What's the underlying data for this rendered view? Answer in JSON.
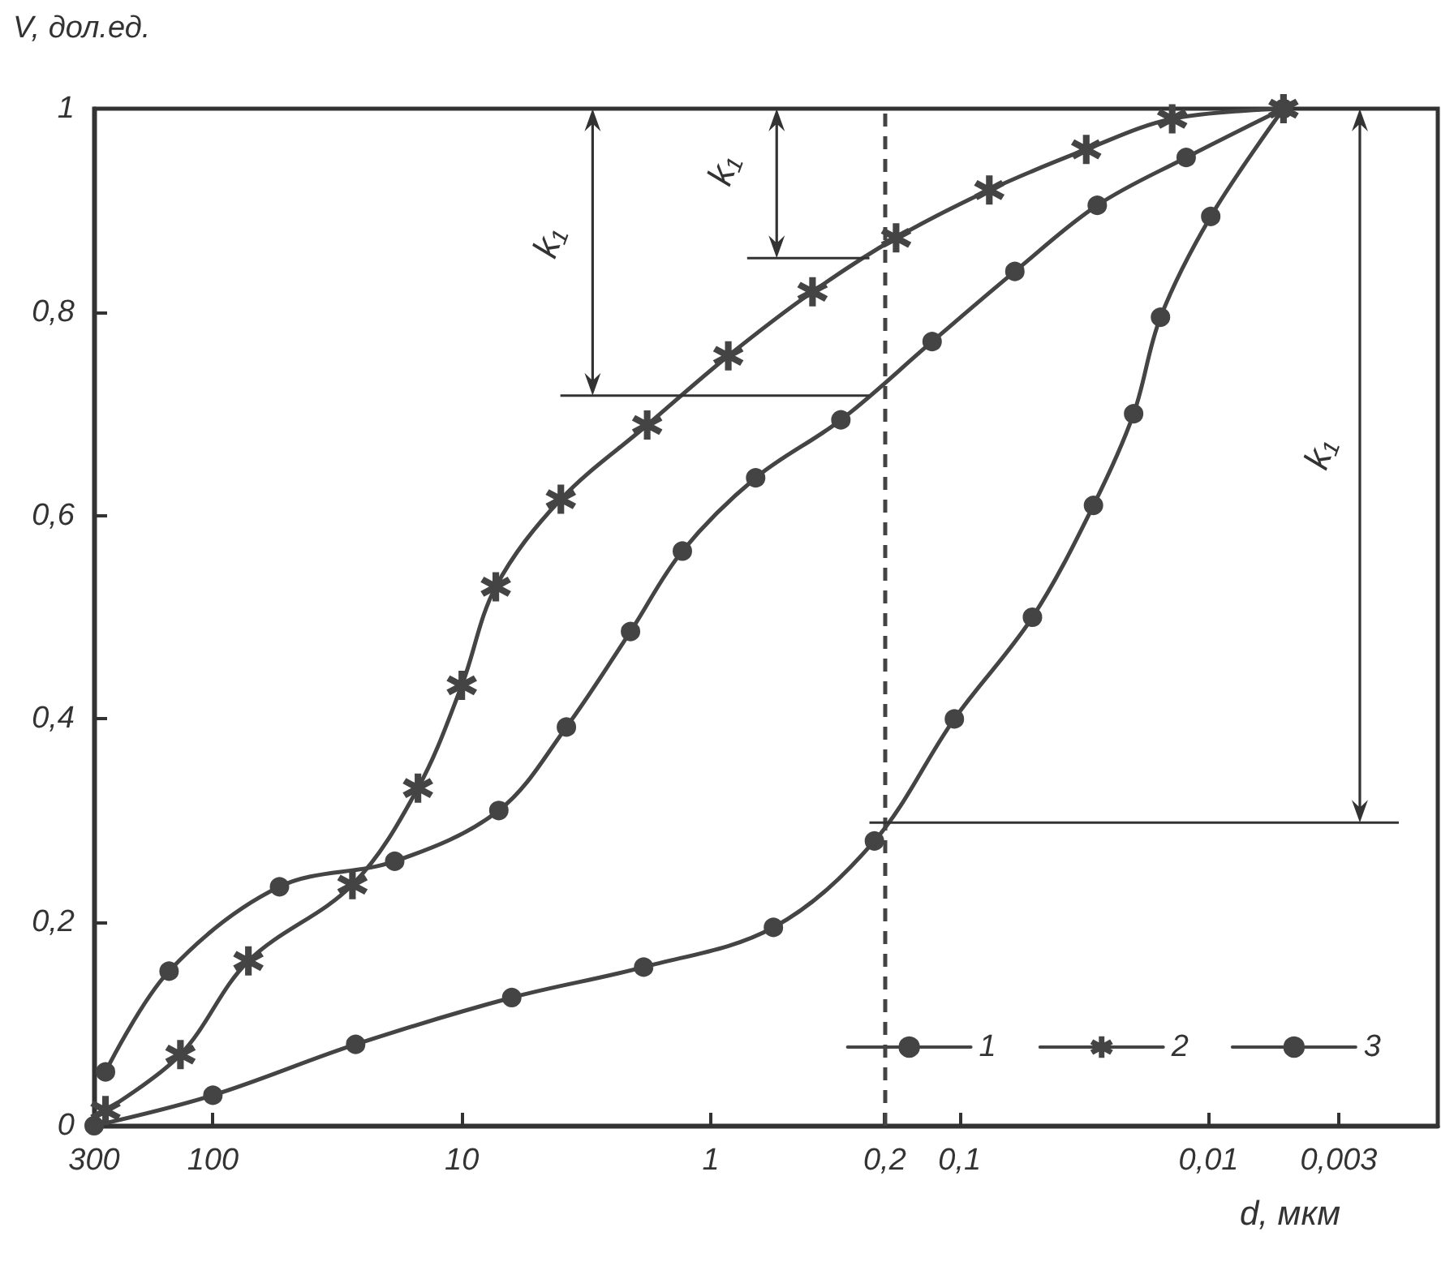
{
  "chart_data": {
    "type": "line",
    "xlabel": "d, мкм",
    "ylabel": "V, дол.ед.",
    "log": "x",
    "xlim": [
      300,
      0.0012
    ],
    "xticks": [
      300,
      100,
      10,
      1,
      {
        "value": 0.2,
        "label": "0,2"
      },
      {
        "value": 0.1,
        "label": "0,1"
      },
      {
        "value": 0.01,
        "label": "0,01"
      },
      {
        "value": 0.003,
        "label": "0,003"
      }
    ],
    "ylim": [
      0,
      1
    ],
    "yticks": [
      0,
      {
        "value": 0.2,
        "label": "0,2"
      },
      {
        "value": 0.4,
        "label": "0,4"
      },
      {
        "value": 0.6,
        "label": "0,6"
      },
      {
        "value": 0.8,
        "label": "0,8"
      },
      1
    ],
    "grid": false,
    "legend": "bottom right",
    "line_style": "solid",
    "series": [
      {
        "name": "1",
        "color": "#444444",
        "marker": "circle",
        "x": [
          300,
          100,
          26.7,
          6.3,
          1.86,
          0.56,
          0.22,
          0.105,
          0.051,
          0.029,
          0.02,
          0.0156,
          0.0098,
          0.005
        ],
        "values": [
          0,
          0.03,
          0.08,
          0.126,
          0.156,
          0.195,
          0.28,
          0.4,
          0.5,
          0.61,
          0.7,
          0.795,
          0.894,
          1
        ]
      },
      {
        "name": "2",
        "color": "#444444",
        "marker": "cross",
        "x": [
          270,
          135,
          72,
          27.5,
          15,
          10,
          7.3,
          4,
          1.8,
          0.85,
          0.39,
          0.18,
          0.076,
          0.031,
          0.014,
          0.005
        ],
        "values": [
          0.015,
          0.07,
          0.162,
          0.237,
          0.332,
          0.433,
          0.53,
          0.616,
          0.689,
          0.757,
          0.82,
          0.873,
          0.92,
          0.96,
          0.99,
          1
        ]
      },
      {
        "name": "3",
        "color": "#444444",
        "marker": "circle",
        "x": [
          270,
          150,
          54,
          18.6,
          7.1,
          3.8,
          2.1,
          1.3,
          0.66,
          0.3,
          0.129,
          0.06,
          0.028,
          0.0123,
          0.005
        ],
        "values": [
          0.053,
          0.152,
          0.235,
          0.26,
          0.31,
          0.392,
          0.486,
          0.565,
          0.637,
          0.694,
          0.771,
          0.84,
          0.905,
          0.952,
          1
        ]
      }
    ],
    "ref_lines": [
      {
        "axis": "x",
        "value": 0.2,
        "line_style": "dashed",
        "color": "#444444"
      }
    ],
    "annotations": [
      "k₁",
      "k₁",
      "k₁"
    ]
  }
}
